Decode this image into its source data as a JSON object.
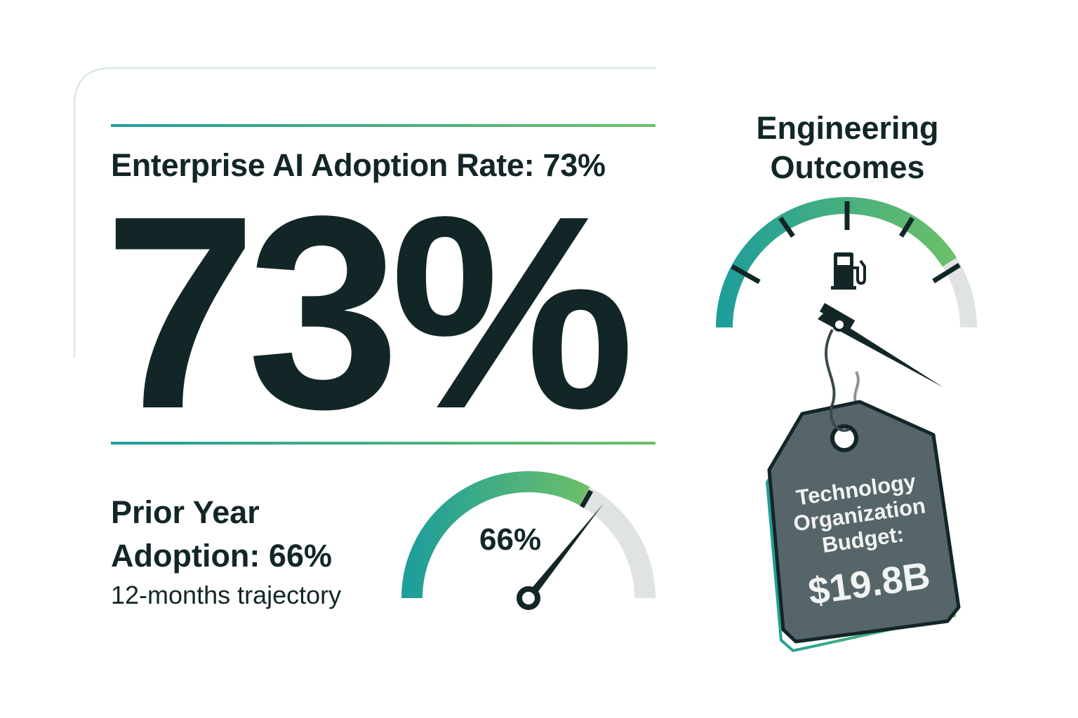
{
  "headline": {
    "title": "Enterprise AI Adoption Rate: 73%",
    "big_value": "73%"
  },
  "prior": {
    "line1": "Prior Year",
    "line2": "Adoption: 66%",
    "subtitle": "12-months trajectory",
    "gauge_label": "66%",
    "gauge_value_pct": 66
  },
  "engineering": {
    "line1": "Engineering",
    "line2": "Outcomes",
    "gauge_fill_pct": 82,
    "icon": "fuel-pump-icon"
  },
  "budget_tag": {
    "line1": "Technology",
    "line2": "Organization",
    "line3": "Budget:",
    "value": "$19.8B"
  },
  "colors": {
    "teal": "#1f9e9a",
    "green": "#6abf69",
    "dark": "#132627",
    "grey": "#dfe3e3",
    "tag": "#56656a"
  }
}
